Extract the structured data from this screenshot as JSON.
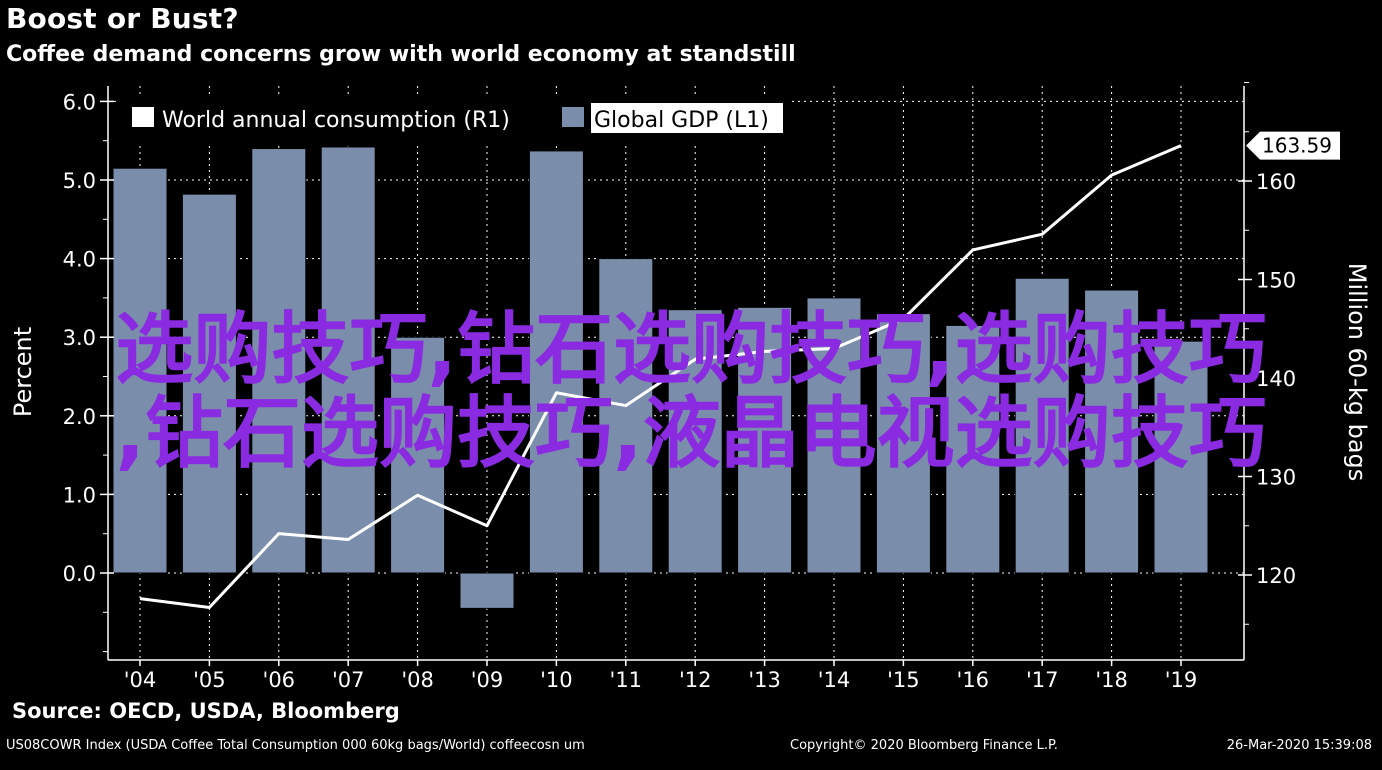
{
  "header": {
    "title": "Boost or Bust?",
    "subtitle": "Coffee demand concerns grow with world economy at standstill"
  },
  "colors": {
    "background": "#000000",
    "bar_fill": "#7a8eab",
    "line": "#ffffff",
    "grid": "#ffffff",
    "watermark": "#8a2be2"
  },
  "chart_data": {
    "type": "bar",
    "categories": [
      "'04",
      "'05",
      "'06",
      "'07",
      "'08",
      "'09",
      "'10",
      "'11",
      "'12",
      "'13",
      "'14",
      "'15",
      "'16",
      "'17",
      "'18",
      "'19"
    ],
    "series": [
      {
        "name": "Global GDP (L1)",
        "type": "bar",
        "axis": "left",
        "values": [
          5.15,
          4.82,
          5.4,
          5.42,
          3.0,
          -0.45,
          5.37,
          4.0,
          3.35,
          3.38,
          3.5,
          3.3,
          3.15,
          3.75,
          3.6,
          2.95
        ]
      },
      {
        "name": "World annual consumption  (R1)",
        "type": "line",
        "axis": "right",
        "values": [
          117.6,
          116.7,
          124.2,
          123.6,
          128.1,
          125.0,
          138.5,
          137.2,
          141.9,
          142.7,
          143.0,
          146.0,
          153.0,
          154.6,
          160.6,
          163.59
        ]
      }
    ],
    "last_value_label": "163.59",
    "ylabel": "Percent",
    "y2label": "Million 60-kg bags",
    "ylim": [
      -2.0,
      6.0
    ],
    "y2lim": [
      112.0,
      171.0
    ],
    "yticks": [
      "6.0",
      "5.0",
      "4.0",
      "3.0",
      "2.0",
      "1.0",
      "0.0"
    ],
    "ytick_values": [
      6,
      5,
      4,
      3,
      2,
      1,
      0
    ],
    "y2ticks": [
      "160",
      "150",
      "140",
      "130",
      "120"
    ],
    "y2tick_values": [
      160,
      150,
      140,
      130,
      120
    ],
    "grid": true,
    "legend_position": "top-left"
  },
  "watermark": {
    "line1": "选购技巧,钻石选购技巧,选购技巧",
    "line2": ",钻石选购技巧,液晶电视选购技巧"
  },
  "footer": {
    "source": "Source: OECD, USDA, Bloomberg",
    "index": "US08COWR Index (USDA Coffee Total Consumption 000 60kg bags/World) coffeecosn um",
    "copyright": "Copyright© 2020 Bloomberg Finance L.P.",
    "timestamp": "26-Mar-2020 15:39:08"
  }
}
